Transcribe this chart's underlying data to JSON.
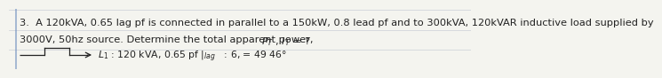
{
  "bg_color": "#f4f4ef",
  "line_color": "#b0b8c8",
  "text_color": "#222222",
  "line1": "3.  A 120kVA, 0.65 lag pf is connected in parallel to a 150kW, 0.8 lead pf and to 300kVA, 120kVAR inductive load supplied by",
  "line2": "3000V, 50hz source. Determine the total apparent power,",
  "line3": "$L_1$ : 120 kVA, 0.65 pf |$_{lag}$   : 6, = 49.46°",
  "font_size_main": 8.2,
  "font_size_sub": 7.8
}
